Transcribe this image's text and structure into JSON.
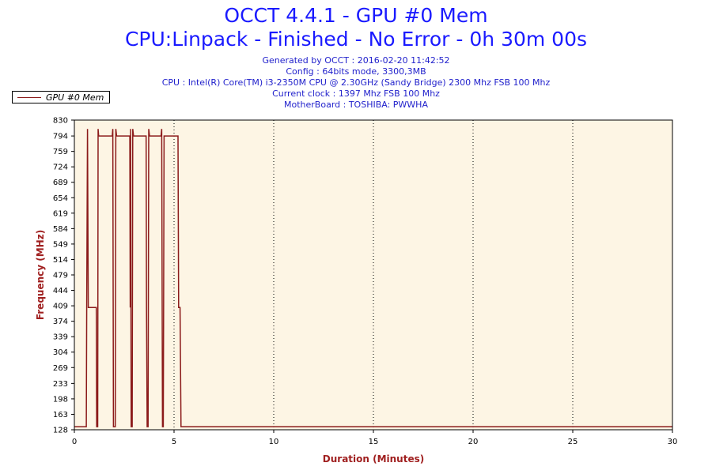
{
  "header": {
    "title_line1": "OCCT 4.4.1 - GPU #0 Mem",
    "title_line2": "CPU:Linpack - Finished - No Error - 0h 30m 00s",
    "generated": "Generated by OCCT : 2016-02-20 11:42:52",
    "config": "Config : 64bits mode, 3300,3MB",
    "cpu": "CPU : Intel(R) Core(TM) i3-2350M CPU @ 2.30GHz (Sandy Bridge) 2300 Mhz FSB 100 Mhz",
    "clock": "Current clock : 1397 Mhz FSB 100 Mhz",
    "motherboard": "MotherBoard : TOSHIBA: PWWHA"
  },
  "colors": {
    "line": "#8b1a1a",
    "plot_bg": "#fdf5e4",
    "axis_label": "#a02020"
  },
  "chart_data": {
    "type": "line",
    "xlabel": "Duration (Minutes)",
    "ylabel": "Frequency (MHz)",
    "xlim": [
      0,
      30
    ],
    "ylim": [
      128,
      830
    ],
    "xticks": [
      0,
      5,
      10,
      15,
      20,
      25,
      30
    ],
    "yticks": [
      128,
      163,
      198,
      233,
      269,
      304,
      339,
      374,
      409,
      444,
      479,
      514,
      549,
      584,
      619,
      654,
      689,
      724,
      759,
      794,
      830
    ],
    "grid": "vertical dotted at 5-minute intervals",
    "legend": "top-left",
    "series": [
      {
        "name": "GPU #0 Mem",
        "points": [
          [
            0,
            135
          ],
          [
            0.6,
            135
          ],
          [
            0.62,
            405
          ],
          [
            0.66,
            810
          ],
          [
            0.7,
            405
          ],
          [
            1.1,
            405
          ],
          [
            1.12,
            135
          ],
          [
            1.17,
            135
          ],
          [
            1.19,
            810
          ],
          [
            1.22,
            794
          ],
          [
            1.9,
            794
          ],
          [
            1.93,
            810
          ],
          [
            1.96,
            135
          ],
          [
            2.05,
            135
          ],
          [
            2.08,
            810
          ],
          [
            2.12,
            794
          ],
          [
            2.78,
            794
          ],
          [
            2.8,
            405
          ],
          [
            2.82,
            810
          ],
          [
            2.85,
            135
          ],
          [
            2.9,
            135
          ],
          [
            2.93,
            810
          ],
          [
            2.97,
            794
          ],
          [
            3.6,
            794
          ],
          [
            3.62,
            405
          ],
          [
            3.65,
            135
          ],
          [
            3.7,
            135
          ],
          [
            3.73,
            810
          ],
          [
            3.77,
            794
          ],
          [
            4.35,
            794
          ],
          [
            4.38,
            810
          ],
          [
            4.42,
            135
          ],
          [
            4.46,
            135
          ],
          [
            4.5,
            794
          ],
          [
            5.2,
            794
          ],
          [
            5.23,
            405
          ],
          [
            5.3,
            405
          ],
          [
            5.35,
            135
          ],
          [
            30,
            135
          ]
        ]
      }
    ]
  }
}
